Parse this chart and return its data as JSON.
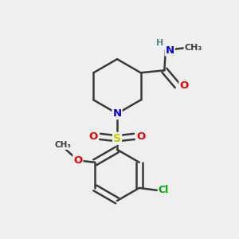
{
  "background_color": "#efefef",
  "atom_colors": {
    "C": "#3a3a3a",
    "N": "#0000ee",
    "O": "#ee0000",
    "S": "#cccc00",
    "Cl": "#00aa00",
    "H": "#4a8a8a"
  },
  "bond_color": "#3a3a3a",
  "bond_width": 1.8,
  "figsize": [
    3.0,
    3.0
  ],
  "dpi": 100
}
